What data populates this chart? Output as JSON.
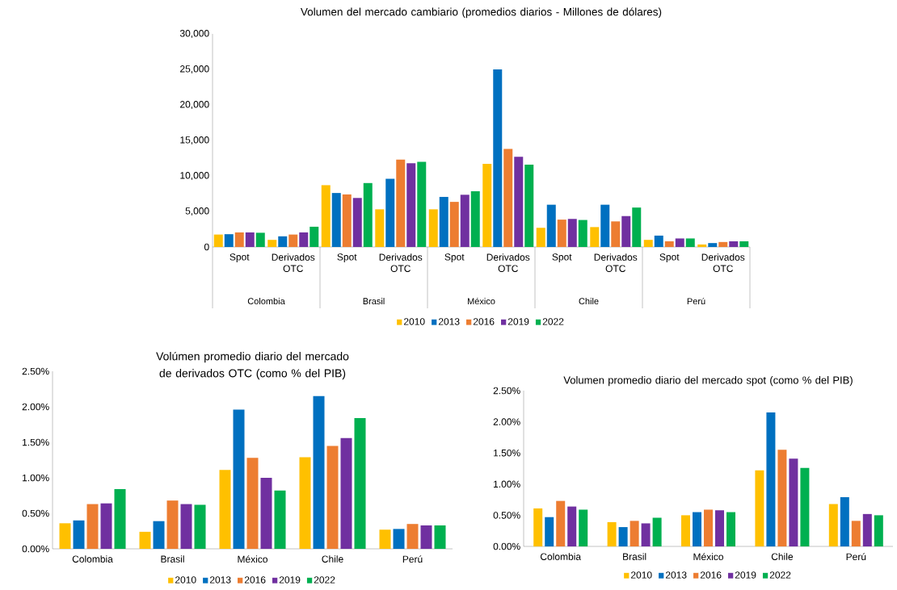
{
  "chart_data": [
    {
      "type": "bar",
      "title": "Volumen del mercado cambiario (promedios diarios - Millones de dólares)",
      "categories": [
        "Spot",
        "Derivados OTC",
        "Spot",
        "Derivados OTC",
        "Spot",
        "Derivados OTC",
        "Spot",
        "Derivados OTC",
        "Spot",
        "Derivados OTC"
      ],
      "annotations": [
        {
          "text": "Colombia"
        },
        {
          "text": "Brasil"
        },
        {
          "text": "México"
        },
        {
          "text": "Chile"
        },
        {
          "text": "Perú"
        }
      ],
      "ylim": [
        0,
        30000
      ],
      "yticks": [
        0,
        {
          "value": 5000,
          "label": "5,000"
        },
        {
          "value": 10000,
          "label": "10,000"
        },
        {
          "value": 15000,
          "label": "15,000"
        },
        {
          "value": 20000,
          "label": "20,000"
        },
        {
          "value": 25000,
          "label": "25,000"
        },
        {
          "value": 30000,
          "label": "30,000"
        }
      ],
      "legend": "bottom",
      "series": [
        {
          "name": "2010",
          "color": "#ffc000",
          "values": [
            1750,
            1000,
            8700,
            5300,
            5300,
            11700,
            2700,
            2800,
            1000,
            350
          ]
        },
        {
          "name": "2013",
          "color": "#0070c0",
          "values": [
            1800,
            1500,
            7600,
            9600,
            7050,
            25000,
            5950,
            5950,
            1600,
            550
          ]
        },
        {
          "name": "2016",
          "color": "#ed7d31",
          "values": [
            2050,
            1750,
            7400,
            12300,
            6350,
            13800,
            3850,
            3600,
            800,
            700
          ]
        },
        {
          "name": "2019",
          "color": "#7030a0",
          "values": [
            2050,
            2050,
            6900,
            11800,
            7350,
            12700,
            3950,
            4350,
            1200,
            800
          ]
        },
        {
          "name": "2022",
          "color": "#00b050",
          "values": [
            2000,
            2850,
            9000,
            12000,
            7850,
            11600,
            3800,
            5550,
            1200,
            800
          ]
        }
      ]
    },
    {
      "type": "bar",
      "title": "Volúmen promedio diario del mercado de derivados OTC (como % del PIB)",
      "categories": [
        "Colombia",
        "Brasil",
        "México",
        "Chile",
        "Perú"
      ],
      "ylim": [
        0,
        2.5
      ],
      "yticks": [
        {
          "value": 0,
          "label": "0.00%"
        },
        {
          "value": 0.5,
          "label": "0.50%"
        },
        {
          "value": 1,
          "label": "1.00%"
        },
        {
          "value": 1.5,
          "label": "1.50%"
        },
        {
          "value": 2,
          "label": "2.00%"
        },
        {
          "value": 2.5,
          "label": "2.50%"
        }
      ],
      "legend": "bottom",
      "series": [
        {
          "name": "2010",
          "color": "#ffc000",
          "values": [
            0.36,
            0.24,
            1.11,
            1.29,
            0.27
          ]
        },
        {
          "name": "2013",
          "color": "#0070c0",
          "values": [
            0.4,
            0.39,
            1.96,
            2.15,
            0.28
          ]
        },
        {
          "name": "2016",
          "color": "#ed7d31",
          "values": [
            0.63,
            0.68,
            1.28,
            1.45,
            0.35
          ]
        },
        {
          "name": "2019",
          "color": "#7030a0",
          "values": [
            0.64,
            0.63,
            1.0,
            1.56,
            0.33
          ]
        },
        {
          "name": "2022",
          "color": "#00b050",
          "values": [
            0.84,
            0.62,
            0.82,
            1.84,
            0.33
          ]
        }
      ]
    },
    {
      "type": "bar",
      "title": "Volumen promedio diario del mercado spot (como % del PIB)",
      "categories": [
        "Colombia",
        "Brasil",
        "México",
        "Chile",
        "Perú"
      ],
      "ylim": [
        0,
        2.5
      ],
      "yticks": [
        {
          "value": 0,
          "label": "0.00%"
        },
        {
          "value": 0.5,
          "label": "0.50%"
        },
        {
          "value": 1,
          "label": "1.00%"
        },
        {
          "value": 1.5,
          "label": "1.50%"
        },
        {
          "value": 2,
          "label": "2.00%"
        },
        {
          "value": 2.5,
          "label": "2.50%"
        }
      ],
      "legend": "bottom",
      "series": [
        {
          "name": "2010",
          "color": "#ffc000",
          "values": [
            0.61,
            0.39,
            0.5,
            1.22,
            0.68
          ]
        },
        {
          "name": "2013",
          "color": "#0070c0",
          "values": [
            0.47,
            0.31,
            0.55,
            2.15,
            0.79
          ]
        },
        {
          "name": "2016",
          "color": "#ed7d31",
          "values": [
            0.73,
            0.41,
            0.59,
            1.55,
            0.41
          ]
        },
        {
          "name": "2019",
          "color": "#7030a0",
          "values": [
            0.64,
            0.37,
            0.58,
            1.41,
            0.52
          ]
        },
        {
          "name": "2022",
          "color": "#00b050",
          "values": [
            0.59,
            0.46,
            0.55,
            1.26,
            0.5
          ]
        }
      ]
    }
  ]
}
